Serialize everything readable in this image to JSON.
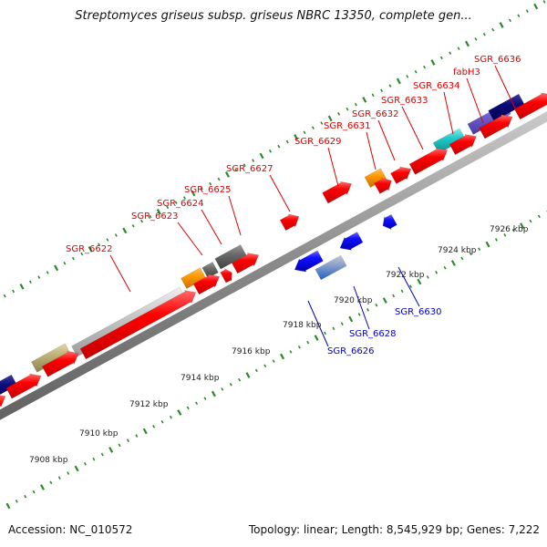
{
  "title": "Streptomyces griseus subsp. griseus NBRC 13350, complete gen...",
  "footer": {
    "accession": "Accession: NC_010572",
    "summary": "Topology: linear; Length: 8,545,929 bp; Genes: 7,222"
  },
  "colors": {
    "backbone": "#8c8c8c",
    "tick": "#2a8a2a",
    "forward_label": "#e00000",
    "reverse_label": "#0000c8",
    "callout_forward": "#e00000",
    "callout_reverse": "#0000c8"
  },
  "scale_ticks": [
    "7908 kbp",
    "7910 kbp",
    "7912 kbp",
    "7914 kbp",
    "7916 kbp",
    "7918 kbp",
    "7920 kbp",
    "7922 kbp",
    "7924 kbp",
    "7926 kbp"
  ],
  "forward_labels": [
    "SGR_6622",
    "SGR_6623",
    "SGR_6624",
    "SGR_6625",
    "SGR_6627",
    "SGR_6629",
    "SGR_6631",
    "SGR_6632",
    "SGR_6633",
    "SGR_6634",
    "fabH3",
    "SGR_6636"
  ],
  "reverse_labels": [
    "SGR_6626",
    "SGR_6628",
    "SGR_6630"
  ]
}
